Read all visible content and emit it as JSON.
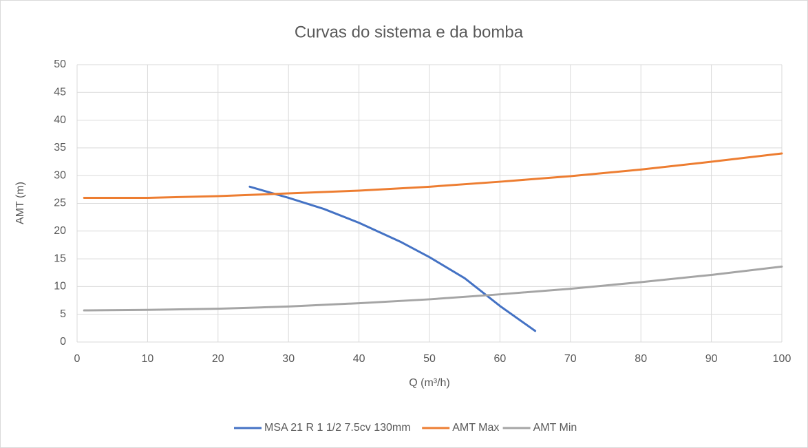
{
  "chart_data": {
    "type": "line",
    "title": "Curvas do sistema e da bomba",
    "x_label": "Q (m³/h)",
    "y_label": "AMT (m)",
    "xlim": [
      0,
      100
    ],
    "xticks": [
      0,
      10,
      20,
      30,
      40,
      50,
      60,
      70,
      80,
      90,
      100
    ],
    "ylim": [
      0,
      50
    ],
    "yticks": [
      0,
      5,
      10,
      15,
      20,
      25,
      30,
      35,
      40,
      45,
      50
    ],
    "grid": true,
    "legend": "bottom",
    "series": [
      {
        "name": "MSA 21 R 1 1/2 7.5cv 130mm",
        "color": "#4472c4",
        "x": [
          24.5,
          30,
          35,
          40,
          46,
          50,
          55,
          60,
          65
        ],
        "values": [
          28,
          26,
          24,
          21.5,
          18,
          15.3,
          11.5,
          6.5,
          2
        ]
      },
      {
        "name": "AMT Max",
        "color": "#ed7d31",
        "x": [
          1,
          10,
          20,
          30,
          40,
          50,
          60,
          70,
          80,
          90,
          100
        ],
        "values": [
          26,
          26,
          26.3,
          26.8,
          27.3,
          28,
          28.9,
          29.9,
          31.1,
          32.5,
          34
        ]
      },
      {
        "name": "AMT Min",
        "color": "#a5a5a5",
        "x": [
          1,
          10,
          20,
          30,
          40,
          50,
          60,
          70,
          80,
          90,
          100
        ],
        "values": [
          5.7,
          5.8,
          6.0,
          6.4,
          7.0,
          7.7,
          8.6,
          9.6,
          10.8,
          12.1,
          13.6
        ]
      }
    ]
  }
}
